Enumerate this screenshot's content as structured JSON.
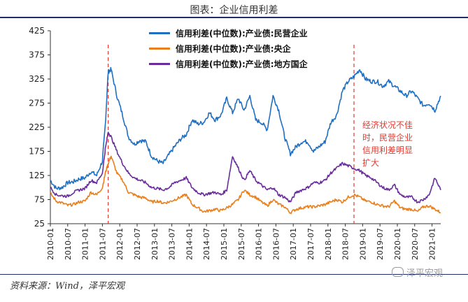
{
  "title": "图表：企业信用利差",
  "source": "资料来源：Wind，泽平宏观",
  "watermark": "泽平宏观",
  "annotation": [
    "经济状况不佳",
    "时，民营企业",
    "信用利差明显",
    "扩大"
  ],
  "colors": {
    "private": "#1f6fc2",
    "central": "#e8801f",
    "local": "#6a2c9c",
    "marker": "#e23a2f",
    "axis": "#333333"
  },
  "chart_data": {
    "type": "line",
    "title": "图表：企业信用利差",
    "xlabel": "",
    "ylabel": "",
    "ylim": [
      25,
      425
    ],
    "yticks": [
      25,
      75,
      125,
      175,
      225,
      275,
      325,
      375,
      425
    ],
    "xlim": [
      "2010-01",
      "2021-04"
    ],
    "xticks": [
      "2010-01",
      "2010-07",
      "2011-01",
      "2011-07",
      "2012-01",
      "2012-07",
      "2013-01",
      "2013-07",
      "2014-01",
      "2014-07",
      "2015-01",
      "2015-07",
      "2016-01",
      "2016-07",
      "2017-01",
      "2017-07",
      "2018-01",
      "2018-07",
      "2019-01",
      "2019-07",
      "2020-01",
      "2020-07",
      "2021-01"
    ],
    "legend_position": "top-center",
    "grid": false,
    "markers": [
      {
        "x": "2011-09",
        "style": "red-dashed-vertical"
      },
      {
        "x": "2018-10",
        "style": "red-dashed-vertical"
      }
    ],
    "series": [
      {
        "name": "信用利差(中位数):产业债:民营企业",
        "color": "#1f6fc2",
        "x": [
          "2010-01",
          "2010-03",
          "2010-05",
          "2010-07",
          "2010-09",
          "2010-11",
          "2011-01",
          "2011-03",
          "2011-05",
          "2011-07",
          "2011-08",
          "2011-09",
          "2011-10",
          "2011-12",
          "2012-02",
          "2012-04",
          "2012-06",
          "2012-08",
          "2012-10",
          "2012-12",
          "2013-02",
          "2013-04",
          "2013-06",
          "2013-08",
          "2013-10",
          "2013-12",
          "2014-02",
          "2014-04",
          "2014-06",
          "2014-08",
          "2014-10",
          "2014-12",
          "2015-02",
          "2015-04",
          "2015-06",
          "2015-08",
          "2015-10",
          "2015-12",
          "2016-02",
          "2016-04",
          "2016-06",
          "2016-08",
          "2016-10",
          "2016-12",
          "2017-02",
          "2017-04",
          "2017-06",
          "2017-08",
          "2017-10",
          "2017-12",
          "2018-02",
          "2018-04",
          "2018-06",
          "2018-08",
          "2018-10",
          "2018-12",
          "2019-02",
          "2019-04",
          "2019-06",
          "2019-08",
          "2019-10",
          "2019-12",
          "2020-02",
          "2020-04",
          "2020-06",
          "2020-08",
          "2020-10",
          "2020-12",
          "2021-02",
          "2021-04"
        ],
        "values": [
          115,
          98,
          100,
          110,
          112,
          118,
          120,
          133,
          125,
          155,
          230,
          340,
          345,
          290,
          250,
          205,
          190,
          198,
          195,
          165,
          155,
          150,
          168,
          185,
          200,
          210,
          240,
          232,
          235,
          255,
          240,
          250,
          285,
          255,
          285,
          260,
          290,
          240,
          235,
          220,
          290,
          260,
          205,
          170,
          185,
          195,
          195,
          175,
          185,
          195,
          235,
          250,
          300,
          320,
          330,
          345,
          325,
          320,
          320,
          310,
          320,
          310,
          300,
          290,
          300,
          285,
          270,
          275,
          260,
          290
        ]
      },
      {
        "name": "信用利差(中位数):产业债:央企",
        "color": "#e8801f",
        "x": [
          "2010-01",
          "2010-03",
          "2010-05",
          "2010-07",
          "2010-09",
          "2010-11",
          "2011-01",
          "2011-03",
          "2011-05",
          "2011-07",
          "2011-08",
          "2011-09",
          "2011-10",
          "2011-12",
          "2012-02",
          "2012-04",
          "2012-06",
          "2012-08",
          "2012-10",
          "2012-12",
          "2013-02",
          "2013-04",
          "2013-06",
          "2013-08",
          "2013-10",
          "2013-12",
          "2014-02",
          "2014-04",
          "2014-06",
          "2014-08",
          "2014-10",
          "2014-12",
          "2015-02",
          "2015-04",
          "2015-06",
          "2015-08",
          "2015-10",
          "2015-12",
          "2016-02",
          "2016-04",
          "2016-06",
          "2016-08",
          "2016-10",
          "2016-12",
          "2017-02",
          "2017-04",
          "2017-06",
          "2017-08",
          "2017-10",
          "2017-12",
          "2018-02",
          "2018-04",
          "2018-06",
          "2018-08",
          "2018-10",
          "2018-12",
          "2019-02",
          "2019-04",
          "2019-06",
          "2019-08",
          "2019-10",
          "2019-12",
          "2020-02",
          "2020-04",
          "2020-06",
          "2020-08",
          "2020-10",
          "2020-12",
          "2021-02",
          "2021-04"
        ],
        "values": [
          88,
          72,
          68,
          63,
          65,
          70,
          72,
          90,
          85,
          100,
          130,
          150,
          165,
          130,
          115,
          90,
          85,
          80,
          78,
          70,
          72,
          68,
          70,
          75,
          80,
          85,
          65,
          58,
          50,
          52,
          55,
          52,
          58,
          65,
          75,
          95,
          85,
          80,
          70,
          62,
          75,
          65,
          60,
          48,
          55,
          58,
          60,
          60,
          62,
          65,
          70,
          75,
          70,
          80,
          85,
          80,
          72,
          70,
          65,
          62,
          60,
          72,
          58,
          55,
          55,
          50,
          60,
          62,
          55,
          48
        ]
      },
      {
        "name": "信用利差(中位数):产业债:地方国企",
        "color": "#6a2c9c",
        "x": [
          "2010-01",
          "2010-03",
          "2010-05",
          "2010-07",
          "2010-09",
          "2010-11",
          "2011-01",
          "2011-03",
          "2011-05",
          "2011-07",
          "2011-08",
          "2011-09",
          "2011-10",
          "2011-12",
          "2012-02",
          "2012-04",
          "2012-06",
          "2012-08",
          "2012-10",
          "2012-12",
          "2013-02",
          "2013-04",
          "2013-06",
          "2013-08",
          "2013-10",
          "2013-12",
          "2014-02",
          "2014-04",
          "2014-06",
          "2014-08",
          "2014-10",
          "2014-12",
          "2015-02",
          "2015-04",
          "2015-06",
          "2015-08",
          "2015-10",
          "2015-12",
          "2016-02",
          "2016-04",
          "2016-06",
          "2016-08",
          "2016-10",
          "2016-12",
          "2017-02",
          "2017-04",
          "2017-06",
          "2017-08",
          "2017-10",
          "2017-12",
          "2018-02",
          "2018-04",
          "2018-06",
          "2018-08",
          "2018-10",
          "2018-12",
          "2019-02",
          "2019-04",
          "2019-06",
          "2019-08",
          "2019-10",
          "2019-12",
          "2020-02",
          "2020-04",
          "2020-06",
          "2020-08",
          "2020-10",
          "2020-12",
          "2021-02",
          "2021-04"
        ],
        "values": [
          100,
          85,
          83,
          82,
          90,
          95,
          98,
          115,
          110,
          130,
          180,
          215,
          205,
          175,
          150,
          130,
          120,
          115,
          110,
          100,
          98,
          95,
          100,
          110,
          115,
          120,
          100,
          90,
          85,
          88,
          90,
          85,
          95,
          165,
          140,
          115,
          135,
          115,
          105,
          95,
          100,
          85,
          80,
          70,
          90,
          95,
          100,
          110,
          110,
          115,
          130,
          140,
          150,
          145,
          140,
          135,
          125,
          120,
          110,
          100,
          95,
          105,
          85,
          80,
          80,
          70,
          75,
          85,
          120,
          95
        ]
      }
    ]
  }
}
